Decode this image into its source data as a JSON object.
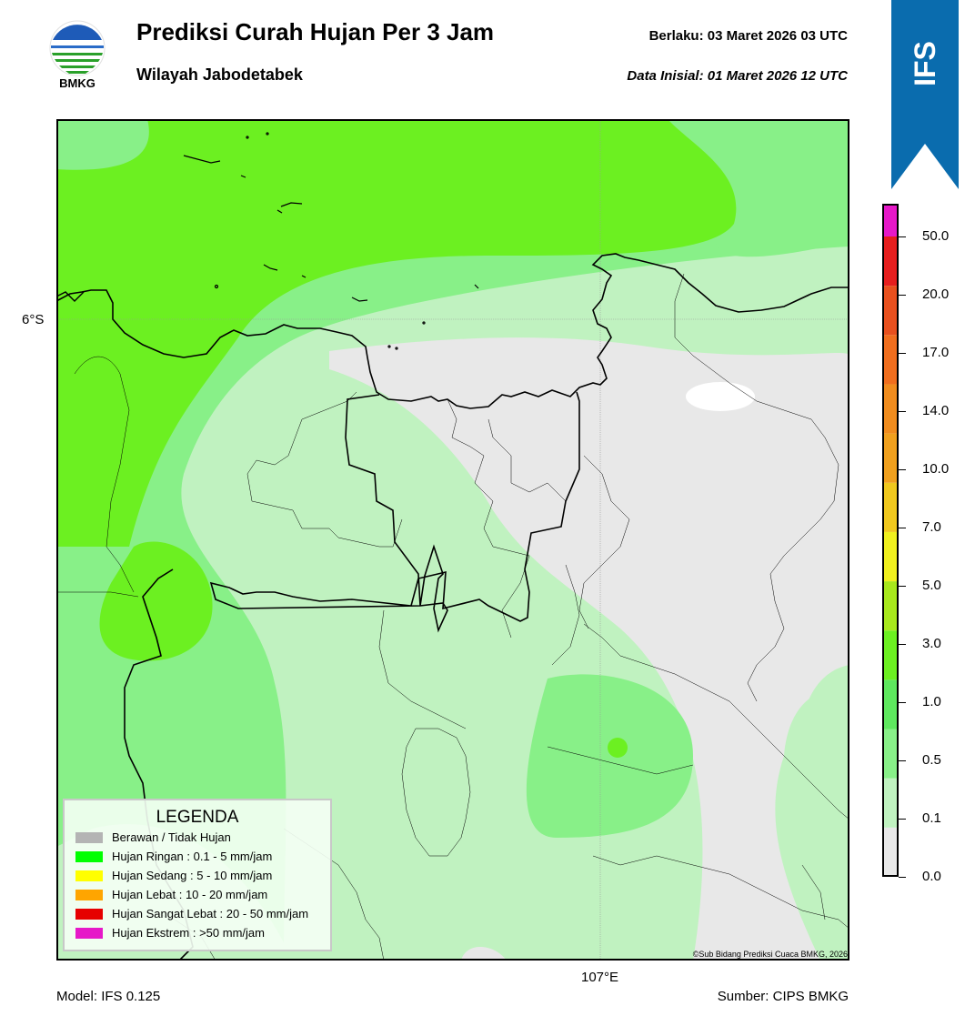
{
  "header": {
    "title": "Prediksi Curah Hujan Per 3 Jam",
    "subtitle": "Wilayah Jabodetabek",
    "valid_time": "Berlaku:  03 Maret 2026 03 UTC",
    "init_time": "Data Inisial:  01 Maret 2026 12 UTC",
    "logo_text": "BMKG",
    "model_badge": "IFS"
  },
  "map": {
    "lat_label": "6°S",
    "lon_label": "107°E",
    "copyright": "©Sub Bidang Prediksi Cuaca BMKG, 2026"
  },
  "legend": {
    "title": "LEGENDA",
    "items": [
      {
        "label": "Berawan / Tidak Hujan",
        "color": "#b4b4b4"
      },
      {
        "label": "Hujan Ringan : 0.1 - 5 mm/jam",
        "color": "#00ff00"
      },
      {
        "label": "Hujan Sedang : 5 - 10 mm/jam",
        "color": "#ffff00"
      },
      {
        "label": "Hujan Lebat : 10 - 20 mm/jam",
        "color": "#ffa500"
      },
      {
        "label": "Hujan Sangat Lebat : 20 - 50 mm/jam",
        "color": "#e60000"
      },
      {
        "label": "Hujan Ekstrem : >50 mm/jam",
        "color": "#e619c8"
      }
    ]
  },
  "colorbar": {
    "ticks": [
      "0.0",
      "0.1",
      "0.5",
      "1.0",
      "3.0",
      "5.0",
      "7.0",
      "10.0",
      "14.0",
      "17.0",
      "20.0",
      "50.0"
    ],
    "colors": [
      "#e8e8e8",
      "#c0f2c0",
      "#88f088",
      "#5ee85e",
      "#6cf021",
      "#a8e81c",
      "#f0f01e",
      "#f0c81e",
      "#f0a01e",
      "#f08c1e",
      "#f06e1e",
      "#e8501e",
      "#e61e1e",
      "#e619c8"
    ]
  },
  "footer": {
    "model": "Model: IFS 0.125",
    "source": "Sumber: CIPS BMKG"
  }
}
